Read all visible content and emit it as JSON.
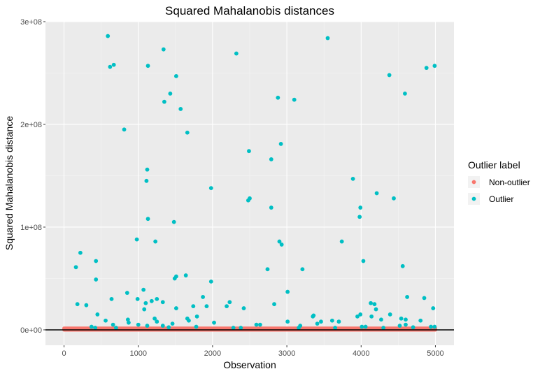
{
  "chart_data": {
    "type": "scatter",
    "title": "Squared Mahalanobis distances",
    "xlabel": "Observation",
    "ylabel": "Squared Mahalanobis distance",
    "xlim": [
      -250,
      5250
    ],
    "ylim": [
      -15000000,
      300000000
    ],
    "x_ticks": [
      0,
      1000,
      2000,
      3000,
      4000,
      5000
    ],
    "x_tick_labels": [
      "0",
      "1000",
      "2000",
      "3000",
      "4000",
      "5000"
    ],
    "y_ticks": [
      0,
      100000000,
      200000000,
      300000000
    ],
    "y_tick_labels": [
      "0e+00",
      "1e+08",
      "2e+08",
      "3e+08"
    ],
    "grid": true,
    "hline": 0,
    "legend": {
      "title": "Outlier label",
      "position": "right",
      "entries": [
        {
          "label": "Non-outlier",
          "color": "#F8766D"
        },
        {
          "label": "Outlier",
          "color": "#00BFC4"
        }
      ]
    },
    "series": [
      {
        "name": "Non-outlier",
        "color": "#F8766D",
        "band": {
          "x_range": [
            0,
            5000
          ],
          "y_range": [
            0,
            1500000
          ]
        }
      },
      {
        "name": "Outlier",
        "color": "#00BFC4",
        "points": [
          [
            590,
            286000000
          ],
          [
            620,
            256000000
          ],
          [
            670,
            258000000
          ],
          [
            1130,
            257000000
          ],
          [
            1340,
            273000000
          ],
          [
            1510,
            247000000
          ],
          [
            1430,
            230000000
          ],
          [
            1350,
            222000000
          ],
          [
            1570,
            215000000
          ],
          [
            1660,
            192000000
          ],
          [
            810,
            195000000
          ],
          [
            2320,
            269000000
          ],
          [
            2880,
            226000000
          ],
          [
            3100,
            224000000
          ],
          [
            3550,
            284000000
          ],
          [
            4380,
            248000000
          ],
          [
            4590,
            230000000
          ],
          [
            4880,
            255000000
          ],
          [
            4990,
            257000000
          ],
          [
            2490,
            174000000
          ],
          [
            2920,
            181000000
          ],
          [
            2790,
            166000000
          ],
          [
            1120,
            156000000
          ],
          [
            1110,
            145000000
          ],
          [
            1130,
            108000000
          ],
          [
            1980,
            138000000
          ],
          [
            2480,
            126000000
          ],
          [
            2500,
            128000000
          ],
          [
            2790,
            119000000
          ],
          [
            3890,
            147000000
          ],
          [
            3990,
            119000000
          ],
          [
            3980,
            110000000
          ],
          [
            4210,
            133000000
          ],
          [
            4440,
            128000000
          ],
          [
            1480,
            105000000
          ],
          [
            980,
            88000000
          ],
          [
            1230,
            86000000
          ],
          [
            2900,
            86000000
          ],
          [
            2930,
            83000000
          ],
          [
            3740,
            86000000
          ],
          [
            220,
            75000000
          ],
          [
            160,
            61000000
          ],
          [
            430,
            67000000
          ],
          [
            2740,
            59000000
          ],
          [
            3210,
            59000000
          ],
          [
            4030,
            67000000
          ],
          [
            4560,
            62000000
          ],
          [
            430,
            49000000
          ],
          [
            1490,
            50000000
          ],
          [
            1510,
            52000000
          ],
          [
            1640,
            53000000
          ],
          [
            1980,
            47000000
          ],
          [
            1070,
            39000000
          ],
          [
            850,
            36000000
          ],
          [
            3010,
            37000000
          ],
          [
            180,
            25000000
          ],
          [
            300,
            24000000
          ],
          [
            640,
            30000000
          ],
          [
            990,
            30000000
          ],
          [
            1100,
            26000000
          ],
          [
            1180,
            28000000
          ],
          [
            1250,
            30000000
          ],
          [
            1330,
            27000000
          ],
          [
            1510,
            21000000
          ],
          [
            1740,
            23000000
          ],
          [
            1870,
            32000000
          ],
          [
            1920,
            23000000
          ],
          [
            2190,
            23000000
          ],
          [
            2230,
            27000000
          ],
          [
            2420,
            21000000
          ],
          [
            2830,
            25000000
          ],
          [
            3350,
            13000000
          ],
          [
            3360,
            14000000
          ],
          [
            3950,
            13000000
          ],
          [
            3990,
            15000000
          ],
          [
            4130,
            26000000
          ],
          [
            4180,
            25000000
          ],
          [
            4200,
            20000000
          ],
          [
            4620,
            32000000
          ],
          [
            4850,
            31000000
          ],
          [
            4970,
            21000000
          ],
          [
            1080,
            20000000
          ],
          [
            450,
            15000000
          ],
          [
            860,
            10000000
          ],
          [
            870,
            7000000
          ],
          [
            1220,
            11000000
          ],
          [
            1250,
            8000000
          ],
          [
            1460,
            6000000
          ],
          [
            1660,
            11000000
          ],
          [
            1680,
            9000000
          ],
          [
            1790,
            13000000
          ],
          [
            2020,
            7000000
          ],
          [
            3010,
            8000000
          ],
          [
            3460,
            8000000
          ],
          [
            3610,
            9000000
          ],
          [
            3700,
            8000000
          ],
          [
            4140,
            13000000
          ],
          [
            4270,
            10000000
          ],
          [
            4390,
            15000000
          ],
          [
            4540,
            11000000
          ],
          [
            4600,
            10000000
          ],
          [
            4800,
            9000000
          ],
          [
            4600,
            5000000
          ],
          [
            560,
            9000000
          ],
          [
            660,
            5000000
          ],
          [
            1000,
            5000000
          ],
          [
            1120,
            4000000
          ],
          [
            1330,
            4000000
          ],
          [
            1780,
            3000000
          ],
          [
            2590,
            5000000
          ],
          [
            2640,
            5000000
          ],
          [
            3180,
            4000000
          ],
          [
            3410,
            6000000
          ],
          [
            4010,
            3000000
          ],
          [
            4060,
            3000000
          ],
          [
            4700,
            2500000
          ],
          [
            4940,
            3000000
          ],
          [
            4990,
            3000000
          ],
          [
            4520,
            4000000
          ],
          [
            370,
            3000000
          ],
          [
            420,
            2000000
          ],
          [
            700,
            2000000
          ],
          [
            1410,
            2500000
          ],
          [
            2280,
            2000000
          ],
          [
            2380,
            2000000
          ],
          [
            3160,
            2000000
          ],
          [
            3650,
            2000000
          ],
          [
            4300,
            2000000
          ]
        ]
      }
    ]
  }
}
